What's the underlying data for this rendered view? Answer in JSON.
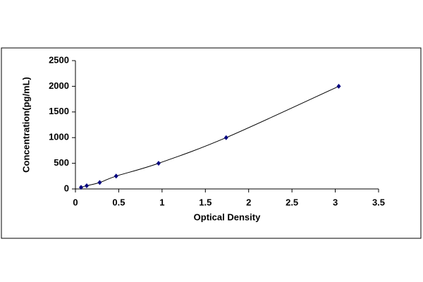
{
  "chart_data": {
    "type": "scatter",
    "xlabel": "Optical Density",
    "ylabel": "Concentration(pg/mL)",
    "series": [
      {
        "color": "#000080",
        "line_color": "#000000",
        "x": [
          0.065,
          0.13,
          0.28,
          0.47,
          0.96,
          1.74,
          3.04
        ],
        "values": [
          31.25,
          62.5,
          125,
          250,
          500,
          1000,
          2000
        ]
      }
    ],
    "xlim": [
      0,
      3.5
    ],
    "xticks": [
      0,
      0.5,
      1,
      1.5,
      2,
      2.5,
      3,
      3.5
    ],
    "ylim": [
      0,
      2500
    ],
    "yticks": [
      0,
      500,
      1000,
      1500,
      2000,
      2500
    ],
    "grid": false,
    "smooth": true
  }
}
